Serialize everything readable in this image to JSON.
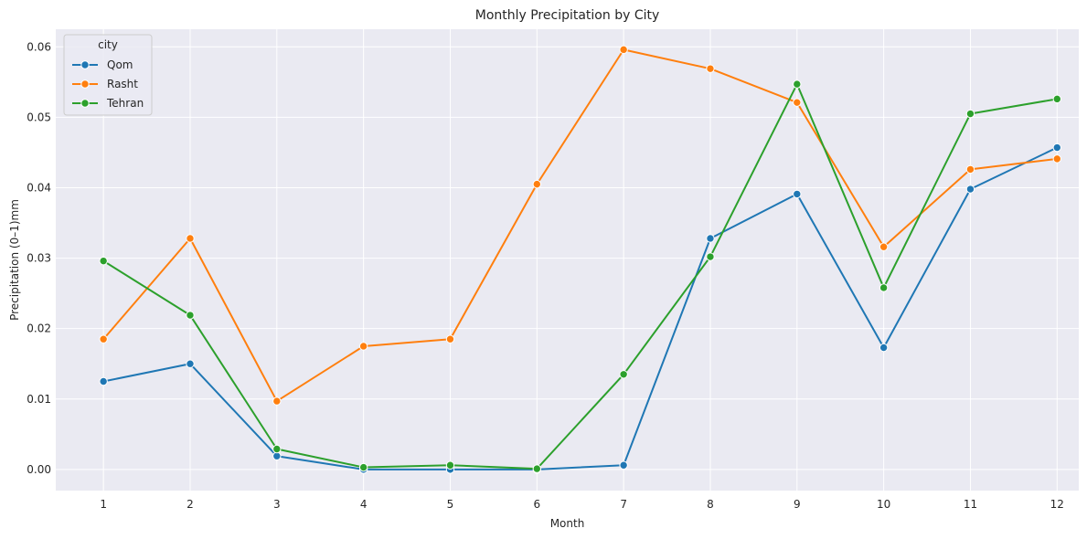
{
  "chart_data": {
    "type": "line",
    "title": "Monthly Precipitation by City",
    "xlabel": "Month",
    "ylabel": "Precipitation (0–1)mm",
    "x": [
      1,
      2,
      3,
      4,
      5,
      6,
      7,
      8,
      9,
      10,
      11,
      12
    ],
    "x_tick_labels": [
      "1",
      "2",
      "3",
      "4",
      "5",
      "6",
      "7",
      "8",
      "9",
      "10",
      "11",
      "12"
    ],
    "y_ticks": [
      0.0,
      0.01,
      0.02,
      0.03,
      0.04,
      0.05,
      0.06
    ],
    "y_tick_labels": [
      "0.00",
      "0.01",
      "0.02",
      "0.03",
      "0.04",
      "0.05",
      "0.06"
    ],
    "xlim": [
      0.45,
      12.25
    ],
    "ylim": [
      -0.003,
      0.0625
    ],
    "grid": true,
    "legend": {
      "title": "city",
      "placement": "top-left"
    },
    "series": [
      {
        "name": "Qom",
        "color": "#1f77b4",
        "values": [
          0.0125,
          0.015,
          0.0019,
          0.0,
          0.0,
          0.0,
          0.0006,
          0.0328,
          0.0391,
          0.0173,
          0.0398,
          0.0457
        ]
      },
      {
        "name": "Rasht",
        "color": "#ff7f0e",
        "values": [
          0.0185,
          0.0328,
          0.0097,
          0.0175,
          0.0185,
          0.0405,
          0.0596,
          0.0569,
          0.0521,
          0.0316,
          0.0426,
          0.0441
        ]
      },
      {
        "name": "Tehran",
        "color": "#2ca02c",
        "values": [
          0.0296,
          0.0219,
          0.0029,
          0.0003,
          0.0006,
          0.0001,
          0.0135,
          0.0302,
          0.0547,
          0.0258,
          0.0505,
          0.0526
        ]
      }
    ]
  }
}
